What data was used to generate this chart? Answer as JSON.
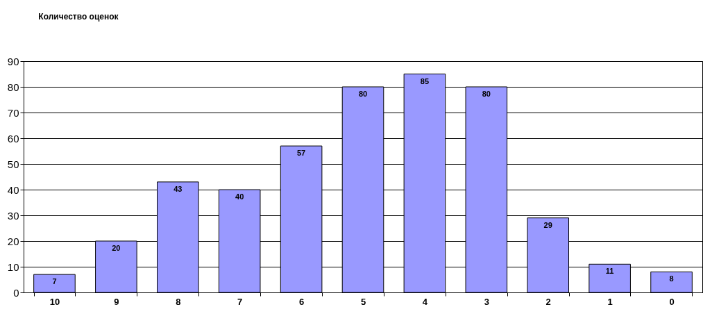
{
  "chart_data": {
    "type": "bar",
    "title": "Количество оценок",
    "categories": [
      "10",
      "9",
      "8",
      "7",
      "6",
      "5",
      "4",
      "3",
      "2",
      "1",
      "0"
    ],
    "values": [
      7,
      20,
      43,
      40,
      57,
      80,
      85,
      80,
      29,
      11,
      8
    ],
    "color": "#9999ff",
    "ylim": [
      0,
      90
    ],
    "yticks": [
      0,
      10,
      20,
      30,
      40,
      50,
      60,
      70,
      80,
      90
    ],
    "grid": "y",
    "data_labels": true
  }
}
